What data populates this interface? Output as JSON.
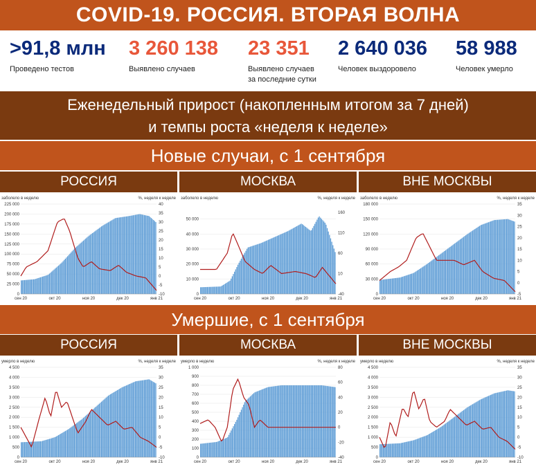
{
  "title": "COVID-19. РОССИЯ. ВТОРАЯ ВОЛНА",
  "stats": [
    {
      "value": ">91,8 млн",
      "label": "Проведено тестов",
      "label2": "",
      "color": "#0b2a7a"
    },
    {
      "value": "3 260 138",
      "label": "Выявлено случаев",
      "label2": "",
      "color": "#e8573a"
    },
    {
      "value": "23 351",
      "label": "Выявлено случаев",
      "label2": "за последние сутки",
      "color": "#e8573a"
    },
    {
      "value": "2 640 036",
      "label": "Человек выздоровело",
      "label2": "",
      "color": "#0b2a7a"
    },
    {
      "value": "58 988",
      "label": "Человек умерло",
      "label2": "",
      "color": "#0b2a7a"
    }
  ],
  "weekly": {
    "line1": "Еженедельный прирост (накопленным итогом за 7 дней)",
    "line2": "и темпы роста «неделя к неделе»"
  },
  "sections": {
    "cases": "Новые случаи, с 1 сентября",
    "deaths": "Умершие, с 1 сентября"
  },
  "regions": [
    "РОССИЯ",
    "МОСКВА",
    "ВНЕ МОСКВЫ"
  ],
  "colors": {
    "bars": "#5b9bd5",
    "line": "#b01c1c"
  },
  "chart_data": [
    {
      "type": "bar+line",
      "id": "cases-russia",
      "ylabel": "заболело в неделю",
      "y2label": "%, неделя к неделе",
      "ylim": [
        0,
        225000
      ],
      "yticks": [
        0,
        25000,
        50000,
        75000,
        100000,
        125000,
        150000,
        175000,
        200000,
        225000
      ],
      "ytick_labels": [
        "0",
        "25 000",
        "50 000",
        "75 000",
        "100 000",
        "125 000",
        "150 000",
        "175 000",
        "200 000",
        "225 000"
      ],
      "y2lim": [
        -10,
        40
      ],
      "y2ticks": [
        -10,
        -5,
        0,
        5,
        10,
        15,
        20,
        25,
        30,
        35,
        40
      ],
      "y2tick_labels": [
        "-10",
        "-5",
        "0",
        "5",
        "10",
        "15",
        "20",
        "25",
        "30",
        "35",
        "40"
      ],
      "xticks": [
        "сен 20",
        "окт 20",
        "ноя 20",
        "дек 20",
        "янв 21"
      ],
      "bars_knots": [
        [
          0,
          34000
        ],
        [
          0.1,
          37000
        ],
        [
          0.2,
          48000
        ],
        [
          0.3,
          78000
        ],
        [
          0.4,
          115000
        ],
        [
          0.5,
          145000
        ],
        [
          0.6,
          170000
        ],
        [
          0.7,
          190000
        ],
        [
          0.8,
          195000
        ],
        [
          0.88,
          200000
        ],
        [
          0.95,
          195000
        ],
        [
          1,
          180000
        ]
      ],
      "line_knots": [
        [
          0,
          0
        ],
        [
          0.04,
          5
        ],
        [
          0.12,
          8
        ],
        [
          0.2,
          14
        ],
        [
          0.27,
          30
        ],
        [
          0.32,
          32
        ],
        [
          0.36,
          25
        ],
        [
          0.42,
          10
        ],
        [
          0.46,
          5
        ],
        [
          0.52,
          8
        ],
        [
          0.58,
          4
        ],
        [
          0.66,
          3
        ],
        [
          0.72,
          6
        ],
        [
          0.78,
          2
        ],
        [
          0.85,
          0
        ],
        [
          0.92,
          -1
        ],
        [
          1,
          -8
        ]
      ]
    },
    {
      "type": "bar+line",
      "id": "cases-moscow",
      "ylabel": "заболело в неделю",
      "y2label": "%, неделя к неделе",
      "ylim": [
        0,
        60000
      ],
      "yticks": [
        0,
        10000,
        20000,
        30000,
        40000,
        50000
      ],
      "ytick_labels": [
        "0",
        "10 000",
        "20 000",
        "30 000",
        "40 000",
        "50 000"
      ],
      "y2lim": [
        -40,
        180
      ],
      "y2ticks": [
        -40,
        10,
        60,
        110,
        160
      ],
      "y2tick_labels": [
        "-40",
        "10",
        "60",
        "110",
        "160"
      ],
      "xticks": [
        "сен 20",
        "окт 20",
        "ноя 20",
        "дек 20",
        "янв 21"
      ],
      "bars_knots": [
        [
          0,
          4500
        ],
        [
          0.15,
          5000
        ],
        [
          0.22,
          9000
        ],
        [
          0.28,
          20000
        ],
        [
          0.35,
          31000
        ],
        [
          0.45,
          34000
        ],
        [
          0.55,
          38000
        ],
        [
          0.65,
          42000
        ],
        [
          0.75,
          47000
        ],
        [
          0.82,
          42000
        ],
        [
          0.88,
          52000
        ],
        [
          0.93,
          47000
        ],
        [
          1,
          28000
        ]
      ],
      "line_knots": [
        [
          0,
          20
        ],
        [
          0.12,
          20
        ],
        [
          0.2,
          60
        ],
        [
          0.24,
          110
        ],
        [
          0.28,
          80
        ],
        [
          0.33,
          40
        ],
        [
          0.4,
          20
        ],
        [
          0.46,
          10
        ],
        [
          0.52,
          30
        ],
        [
          0.6,
          10
        ],
        [
          0.7,
          15
        ],
        [
          0.78,
          10
        ],
        [
          0.85,
          0
        ],
        [
          0.9,
          25
        ],
        [
          1,
          -15
        ]
      ]
    },
    {
      "type": "bar+line",
      "id": "cases-outside",
      "ylabel": "заболело в неделю",
      "y2label": "%, неделя к неделе",
      "ylim": [
        0,
        180000
      ],
      "yticks": [
        0,
        30000,
        60000,
        90000,
        120000,
        150000,
        180000
      ],
      "ytick_labels": [
        "0",
        "30 000",
        "60 000",
        "90 000",
        "120 000",
        "150 000",
        "180 000"
      ],
      "y2lim": [
        -5,
        35
      ],
      "y2ticks": [
        -5,
        0,
        5,
        10,
        15,
        20,
        25,
        30,
        35
      ],
      "y2tick_labels": [
        "-5",
        "0",
        "5",
        "10",
        "15",
        "20",
        "25",
        "30",
        "35"
      ],
      "xticks": [
        "сен 20",
        "окт 20",
        "ноя 20",
        "дек 20",
        "янв 21"
      ],
      "bars_knots": [
        [
          0,
          28000
        ],
        [
          0.15,
          33000
        ],
        [
          0.25,
          42000
        ],
        [
          0.35,
          60000
        ],
        [
          0.45,
          80000
        ],
        [
          0.55,
          100000
        ],
        [
          0.65,
          120000
        ],
        [
          0.75,
          138000
        ],
        [
          0.85,
          148000
        ],
        [
          0.95,
          150000
        ],
        [
          1,
          145000
        ]
      ],
      "line_knots": [
        [
          0,
          1
        ],
        [
          0.08,
          5
        ],
        [
          0.14,
          7
        ],
        [
          0.2,
          10
        ],
        [
          0.27,
          20
        ],
        [
          0.32,
          22
        ],
        [
          0.37,
          16
        ],
        [
          0.42,
          10
        ],
        [
          0.48,
          10
        ],
        [
          0.55,
          10
        ],
        [
          0.62,
          8
        ],
        [
          0.7,
          10
        ],
        [
          0.76,
          5
        ],
        [
          0.84,
          2
        ],
        [
          0.92,
          1
        ],
        [
          1,
          -4
        ]
      ]
    },
    {
      "type": "bar+line",
      "id": "deaths-russia",
      "ylabel": "умерло в неделю",
      "y2label": "%, неделя к неделе",
      "ylim": [
        0,
        4500
      ],
      "yticks": [
        0,
        500,
        1000,
        1500,
        2000,
        2500,
        3000,
        3500,
        4000,
        4500
      ],
      "ytick_labels": [
        "0",
        "500",
        "1 000",
        "1 500",
        "2 000",
        "2 500",
        "3 000",
        "3 500",
        "4 000",
        "4 500"
      ],
      "y2lim": [
        -10,
        35
      ],
      "y2ticks": [
        -10,
        -5,
        0,
        5,
        10,
        15,
        20,
        25,
        30,
        35
      ],
      "y2tick_labels": [
        "-10",
        "-5",
        "0",
        "5",
        "10",
        "15",
        "20",
        "25",
        "30",
        "35"
      ],
      "xticks": [
        "сен 20",
        "окт 20",
        "ноя 20",
        "дек 20",
        "янв 21"
      ],
      "bars_knots": [
        [
          0,
          750
        ],
        [
          0.15,
          800
        ],
        [
          0.25,
          1000
        ],
        [
          0.35,
          1400
        ],
        [
          0.45,
          1900
        ],
        [
          0.55,
          2500
        ],
        [
          0.65,
          3100
        ],
        [
          0.75,
          3500
        ],
        [
          0.85,
          3800
        ],
        [
          0.95,
          3900
        ],
        [
          1,
          3700
        ]
      ],
      "line_knots": [
        [
          0,
          5
        ],
        [
          0.04,
          0
        ],
        [
          0.08,
          -5
        ],
        [
          0.13,
          8
        ],
        [
          0.18,
          20
        ],
        [
          0.22,
          10
        ],
        [
          0.26,
          24
        ],
        [
          0.3,
          15
        ],
        [
          0.34,
          18
        ],
        [
          0.38,
          10
        ],
        [
          0.42,
          2
        ],
        [
          0.48,
          8
        ],
        [
          0.52,
          14
        ],
        [
          0.58,
          10
        ],
        [
          0.64,
          6
        ],
        [
          0.7,
          8
        ],
        [
          0.76,
          4
        ],
        [
          0.82,
          5
        ],
        [
          0.88,
          0
        ],
        [
          0.94,
          -2
        ],
        [
          1,
          -5
        ]
      ]
    },
    {
      "type": "bar+line",
      "id": "deaths-moscow",
      "ylabel": "умерло в неделю",
      "y2label": "%, неделя к неделе",
      "ylim": [
        0,
        1000
      ],
      "yticks": [
        0,
        100,
        200,
        300,
        400,
        500,
        600,
        700,
        800,
        900,
        1000
      ],
      "ytick_labels": [
        "0",
        "100",
        "200",
        "300",
        "400",
        "500",
        "600",
        "700",
        "800",
        "900",
        "1 000"
      ],
      "y2lim": [
        -40,
        80
      ],
      "y2ticks": [
        -40,
        -20,
        0,
        20,
        40,
        60,
        80
      ],
      "y2tick_labels": [
        "-40",
        "-20",
        "0",
        "20",
        "40",
        "60",
        "80"
      ],
      "xticks": [
        "сен 20",
        "окт 20",
        "ноя 20",
        "дек 20",
        "янв 21"
      ],
      "bars_knots": [
        [
          0,
          150
        ],
        [
          0.12,
          170
        ],
        [
          0.2,
          220
        ],
        [
          0.27,
          420
        ],
        [
          0.33,
          620
        ],
        [
          0.4,
          720
        ],
        [
          0.5,
          780
        ],
        [
          0.6,
          800
        ],
        [
          0.7,
          800
        ],
        [
          0.8,
          800
        ],
        [
          0.9,
          800
        ],
        [
          1,
          780
        ]
      ],
      "line_knots": [
        [
          0,
          5
        ],
        [
          0.06,
          10
        ],
        [
          0.11,
          0
        ],
        [
          0.16,
          -20
        ],
        [
          0.2,
          0
        ],
        [
          0.24,
          50
        ],
        [
          0.28,
          65
        ],
        [
          0.32,
          40
        ],
        [
          0.36,
          30
        ],
        [
          0.4,
          0
        ],
        [
          0.44,
          10
        ],
        [
          0.5,
          0
        ],
        [
          0.6,
          0
        ],
        [
          0.7,
          0
        ],
        [
          0.8,
          0
        ],
        [
          0.9,
          0
        ],
        [
          1,
          0
        ]
      ]
    },
    {
      "type": "bar+line",
      "id": "deaths-outside",
      "ylabel": "умерло в неделю",
      "y2label": "%, неделя к неделе",
      "ylim": [
        0,
        4500
      ],
      "yticks": [
        0,
        500,
        1000,
        1500,
        2000,
        2500,
        3000,
        3500,
        4000,
        4500
      ],
      "ytick_labels": [
        "0",
        "500",
        "1 000",
        "1 500",
        "2 000",
        "2 500",
        "3 000",
        "3 500",
        "4 000",
        "4 500"
      ],
      "y2lim": [
        -10,
        35
      ],
      "y2ticks": [
        -10,
        -5,
        0,
        5,
        10,
        15,
        20,
        25,
        30,
        35
      ],
      "y2tick_labels": [
        "-10",
        "-5",
        "0",
        "5",
        "10",
        "15",
        "20",
        "25",
        "30",
        "35"
      ],
      "xticks": [
        "сен 20",
        "окт 20",
        "ноя 20",
        "дек 20",
        "янв 21"
      ],
      "bars_knots": [
        [
          0,
          650
        ],
        [
          0.15,
          700
        ],
        [
          0.25,
          850
        ],
        [
          0.35,
          1100
        ],
        [
          0.45,
          1500
        ],
        [
          0.55,
          2000
        ],
        [
          0.65,
          2500
        ],
        [
          0.75,
          2900
        ],
        [
          0.85,
          3200
        ],
        [
          0.95,
          3350
        ],
        [
          1,
          3300
        ]
      ],
      "line_knots": [
        [
          0,
          0
        ],
        [
          0.04,
          -6
        ],
        [
          0.08,
          8
        ],
        [
          0.12,
          0
        ],
        [
          0.17,
          15
        ],
        [
          0.21,
          10
        ],
        [
          0.25,
          24
        ],
        [
          0.29,
          14
        ],
        [
          0.33,
          20
        ],
        [
          0.37,
          8
        ],
        [
          0.42,
          5
        ],
        [
          0.48,
          8
        ],
        [
          0.52,
          14
        ],
        [
          0.58,
          10
        ],
        [
          0.64,
          6
        ],
        [
          0.7,
          8
        ],
        [
          0.76,
          4
        ],
        [
          0.82,
          5
        ],
        [
          0.88,
          0
        ],
        [
          0.94,
          -2
        ],
        [
          1,
          -6
        ]
      ]
    }
  ]
}
